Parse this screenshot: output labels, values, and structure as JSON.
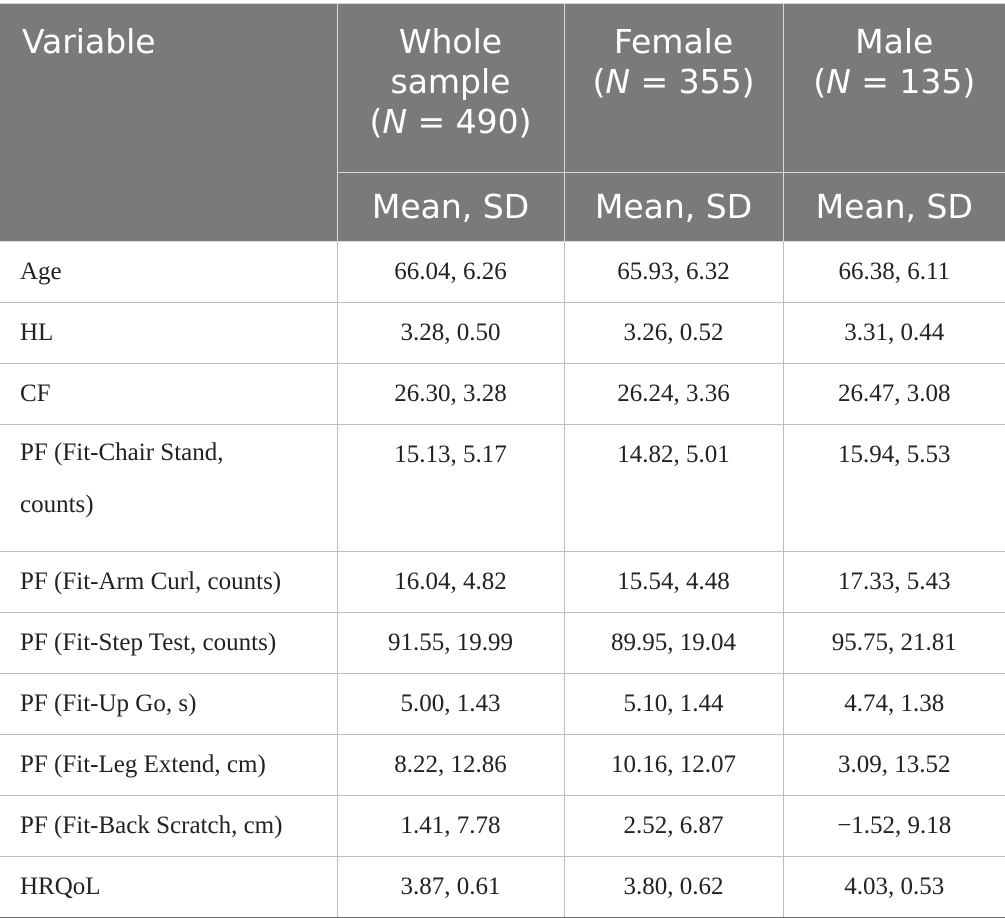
{
  "table": {
    "header": {
      "variable": "Variable",
      "groups": [
        {
          "line1": "Whole",
          "line2": "sample",
          "n_prefix": "(",
          "n_label": "N",
          "n_suffix": " = 490)"
        },
        {
          "line1": "Female",
          "n_prefix": "(",
          "n_label": "N",
          "n_suffix": " = 355)"
        },
        {
          "line1": "Male",
          "n_prefix": "(",
          "n_label": "N",
          "n_suffix": " = 135)"
        }
      ],
      "subheader": [
        "Mean, SD",
        "Mean, SD",
        "Mean, SD"
      ]
    },
    "rows": [
      {
        "variable": "Age",
        "whole": "66.04, 6.26",
        "female": "65.93, 6.32",
        "male": "66.38, 6.11"
      },
      {
        "variable": "HL",
        "whole": "3.28, 0.50",
        "female": "3.26, 0.52",
        "male": "3.31, 0.44"
      },
      {
        "variable": "CF",
        "whole": "26.30, 3.28",
        "female": "26.24, 3.36",
        "male": "26.47, 3.08"
      },
      {
        "variable_line1": "PF (Fit-Chair Stand,",
        "variable_line2": "counts)",
        "whole": "15.13, 5.17",
        "female": "14.82, 5.01",
        "male": "15.94, 5.53"
      },
      {
        "variable": "PF (Fit-Arm Curl, counts)",
        "whole": "16.04, 4.82",
        "female": "15.54, 4.48",
        "male": "17.33, 5.43"
      },
      {
        "variable": "PF (Fit-Step Test, counts)",
        "whole": "91.55, 19.99",
        "female": "89.95, 19.04",
        "male": "95.75, 21.81"
      },
      {
        "variable": "PF (Fit-Up Go, s)",
        "whole": "5.00, 1.43",
        "female": "5.10, 1.44",
        "male": "4.74, 1.38"
      },
      {
        "variable": "PF (Fit-Leg Extend, cm)",
        "whole": "8.22, 12.86",
        "female": "10.16, 12.07",
        "male": "3.09, 13.52"
      },
      {
        "variable": "PF (Fit-Back Scratch, cm)",
        "whole": "1.41, 7.78",
        "female": "2.52, 6.87",
        "male": "−1.52, 9.18"
      },
      {
        "variable": "HRQoL",
        "whole": "3.87, 0.61",
        "female": "3.80, 0.62",
        "male": "4.03, 0.53"
      }
    ]
  },
  "colors": {
    "header_bg": "#7a7b79",
    "header_text": "#ffffff",
    "border": "#bdbdbd"
  }
}
